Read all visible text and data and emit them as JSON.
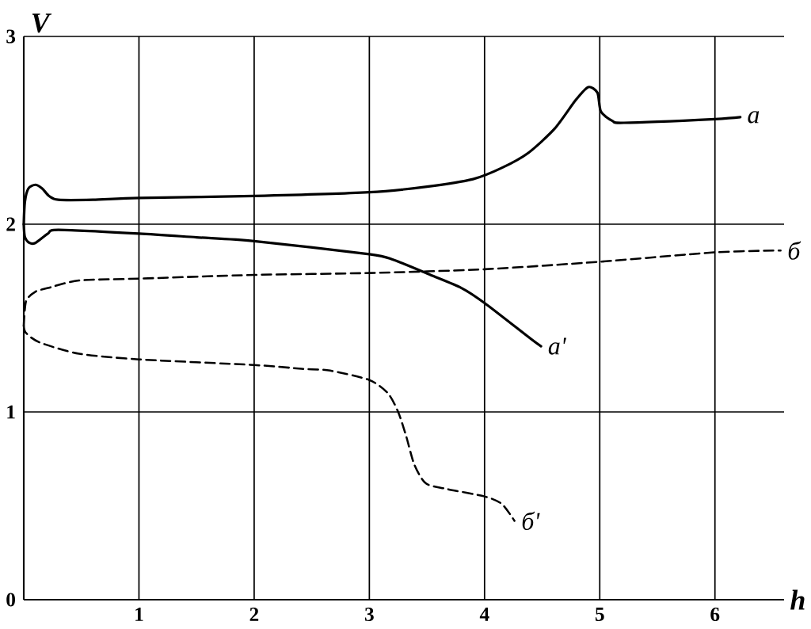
{
  "chart_data": {
    "type": "line",
    "xlabel": "h",
    "ylabel": "V",
    "xlim": [
      0,
      6.6
    ],
    "ylim": [
      0,
      3
    ],
    "xticks": [
      1,
      2,
      3,
      4,
      5,
      6
    ],
    "yticks": [
      0,
      1,
      2,
      3
    ],
    "grid": true,
    "series": [
      {
        "name": "а",
        "color": "#000000",
        "line_style": "solid",
        "x": [
          0,
          0.01,
          0.04,
          0.1,
          0.16,
          0.22,
          0.3,
          0.6,
          1,
          2,
          3,
          3.5,
          3.9,
          4.15,
          4.38,
          4.61,
          4.79,
          4.9,
          4.98,
          5.01,
          5.11,
          5.21,
          6,
          6.22
        ],
        "values": [
          2.0,
          2.12,
          2.19,
          2.21,
          2.19,
          2.15,
          2.13,
          2.13,
          2.14,
          2.15,
          2.17,
          2.2,
          2.24,
          2.3,
          2.38,
          2.51,
          2.66,
          2.73,
          2.7,
          2.6,
          2.55,
          2.54,
          2.56,
          2.57
        ]
      },
      {
        "name": "а'",
        "color": "#000000",
        "line_style": "solid",
        "x": [
          0,
          0.01,
          0.05,
          0.1,
          0.21,
          0.3,
          1,
          1.5,
          2,
          3,
          3.21,
          3.53,
          3.8,
          4,
          4.4,
          4.49
        ],
        "values": [
          2.0,
          1.93,
          1.9,
          1.9,
          1.95,
          1.97,
          1.95,
          1.93,
          1.91,
          1.84,
          1.81,
          1.73,
          1.66,
          1.58,
          1.39,
          1.35
        ]
      },
      {
        "name": "б",
        "color": "#000000",
        "line_style": "dashed",
        "x": [
          0,
          0.02,
          0.1,
          0.21,
          0.48,
          1,
          2,
          3,
          4,
          5,
          6,
          6.57
        ],
        "values": [
          1.46,
          1.59,
          1.64,
          1.66,
          1.7,
          1.71,
          1.73,
          1.74,
          1.76,
          1.8,
          1.85,
          1.86
        ]
      },
      {
        "name": "б'",
        "color": "#000000",
        "line_style": "dashed",
        "x": [
          0,
          0.02,
          0.14,
          0.48,
          1,
          2,
          2.41,
          2.66,
          3,
          3.16,
          3.25,
          3.32,
          3.39,
          3.49,
          3.67,
          4,
          4.15,
          4.26
        ],
        "values": [
          1.46,
          1.42,
          1.37,
          1.31,
          1.28,
          1.25,
          1.23,
          1.22,
          1.17,
          1.1,
          1.0,
          0.87,
          0.72,
          0.62,
          0.59,
          0.55,
          0.51,
          0.42
        ]
      }
    ]
  }
}
